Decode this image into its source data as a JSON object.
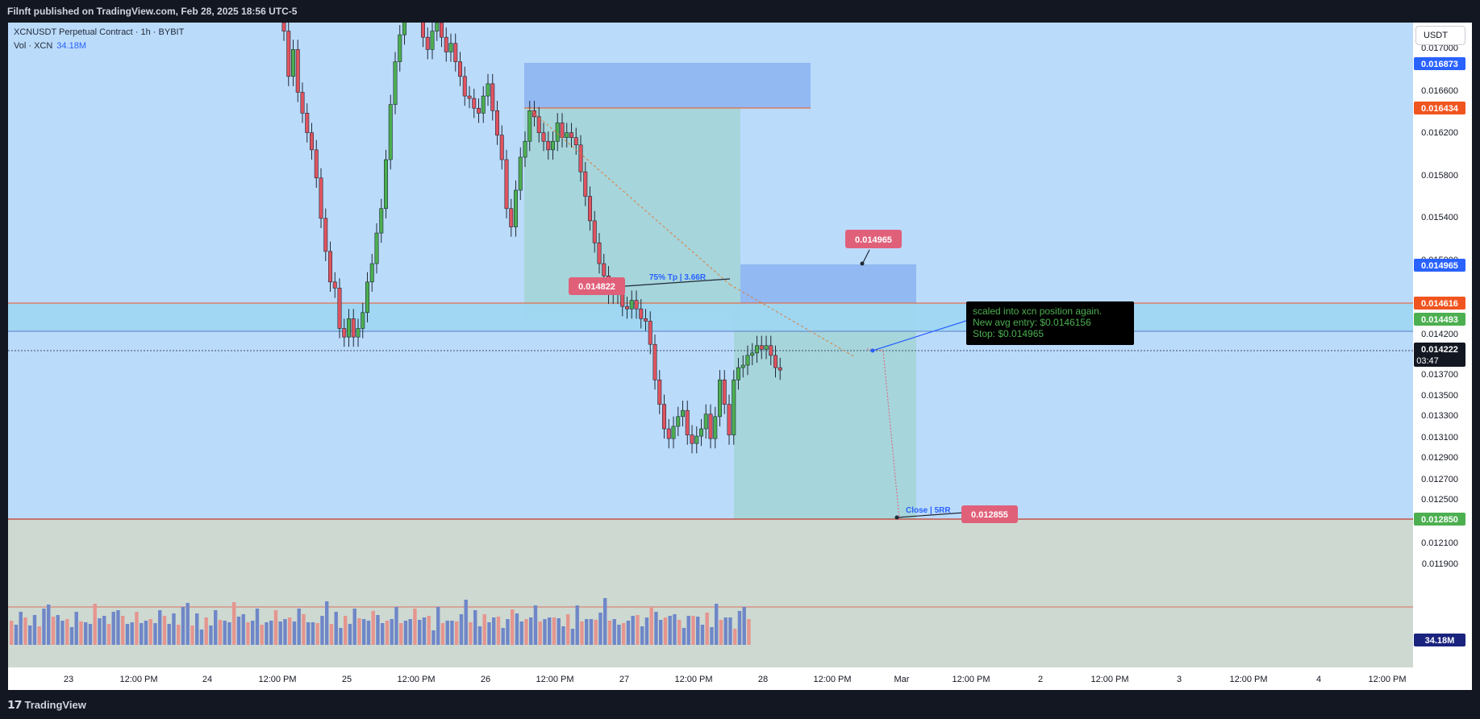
{
  "header": {
    "publisher_text": "Filnft published on TradingView.com, Feb 28, 2025 18:56 UTC-5"
  },
  "legend": {
    "symbol_line": "XCNUSDT Perpetual Contract · 1h · BYBIT",
    "vol_label": "Vol · XCN",
    "vol_value": "34.18M"
  },
  "toolbar": {
    "currency": "USDT"
  },
  "footer": {
    "brand": "TradingView"
  },
  "colors": {
    "up": "#4caf50",
    "down": "#e05460",
    "vol_up": "#6f87c8",
    "vol_down": "#e6958f",
    "bg": "#bbdbfb",
    "accent_blue": "#2962ff",
    "level_orange": "#f0551f",
    "label_red": "#e0607a"
  },
  "chart_data": {
    "type": "candlestick",
    "symbol": "XCNUSDT Perpetual Contract",
    "timeframe": "1h",
    "exchange": "BYBIT",
    "ylim": [
      0.01185,
      0.01712
    ],
    "y_ticks": [
      "0.017000",
      "0.016600",
      "0.016200",
      "0.015800",
      "0.015400",
      "0.015000",
      "0.014600",
      "0.014200",
      "0.013900",
      "0.013700",
      "0.013500",
      "0.013300",
      "0.013100",
      "0.012900",
      "0.012700",
      "0.012500",
      "0.012300",
      "0.012100",
      "0.011900"
    ],
    "x_ticks": [
      "23",
      "12:00 PM",
      "24",
      "12:00 PM",
      "25",
      "12:00 PM",
      "26",
      "12:00 PM",
      "27",
      "12:00 PM",
      "28",
      "12:00 PM",
      "Mar",
      "12:00 PM",
      "2",
      "12:00 PM",
      "3",
      "12:00 PM",
      "4",
      "12:00 PM"
    ],
    "candles_close": [
      0.01705,
      0.01668,
      0.0169,
      0.01655,
      0.01638,
      0.01622,
      0.01608,
      0.01585,
      0.01552,
      0.01525,
      0.015,
      0.01495,
      0.01462,
      0.01455,
      0.0147,
      0.01455,
      0.01462,
      0.01475,
      0.015,
      0.01515,
      0.0154,
      0.0156,
      0.016,
      0.01645,
      0.0168,
      0.01702,
      0.01725,
      0.01735,
      0.0173,
      0.0172,
      0.017,
      0.0169,
      0.01705,
      0.01712,
      0.017,
      0.01688,
      0.01695,
      0.0168,
      0.01668,
      0.01652,
      0.0165,
      0.01642,
      0.01638,
      0.01652,
      0.01662,
      0.0164,
      0.0162,
      0.016,
      0.0156,
      0.01545,
      0.01575,
      0.01602,
      0.01615,
      0.0164,
      0.01635,
      0.01622,
      0.01615,
      0.01608,
      0.01615,
      0.0163,
      0.01618,
      0.01622,
      0.01618,
      0.01612,
      0.0159,
      0.0157,
      0.0155,
      0.01532,
      0.01515,
      0.01505,
      0.0149,
      0.01495,
      0.0149,
      0.0148,
      0.01478,
      0.01485,
      0.01478,
      0.0147,
      0.01468,
      0.01449,
      0.0142,
      0.014,
      0.0138,
      0.01372,
      0.01382,
      0.0139,
      0.01395,
      0.01375,
      0.01368,
      0.01374,
      0.0138,
      0.01392,
      0.01372,
      0.0139,
      0.0142,
      0.014,
      0.01375,
      0.0142,
      0.0143,
      0.01432,
      0.0144,
      0.01442,
      0.01448,
      0.01445,
      0.01448,
      0.0144,
      0.0143,
      0.01428
    ],
    "candles_open": [
      0.01712,
      0.01705,
      0.01668,
      0.0169,
      0.01655,
      0.01638,
      0.01622,
      0.01608,
      0.01585,
      0.01552,
      0.01525,
      0.015,
      0.01495,
      0.01462,
      0.01455,
      0.0147,
      0.01455,
      0.01462,
      0.01475,
      0.015,
      0.01515,
      0.0154,
      0.0156,
      0.016,
      0.01645,
      0.0168,
      0.01702,
      0.01725,
      0.01735,
      0.0173,
      0.0172,
      0.017,
      0.0169,
      0.01705,
      0.01712,
      0.017,
      0.01688,
      0.01695,
      0.0168,
      0.01668,
      0.01652,
      0.0165,
      0.01642,
      0.01638,
      0.01652,
      0.01662,
      0.0164,
      0.0162,
      0.016,
      0.0156,
      0.01545,
      0.01575,
      0.01602,
      0.01615,
      0.0164,
      0.01635,
      0.01622,
      0.01615,
      0.01608,
      0.01615,
      0.0163,
      0.01618,
      0.01622,
      0.01618,
      0.01612,
      0.0159,
      0.0157,
      0.0155,
      0.01532,
      0.01515,
      0.01505,
      0.0149,
      0.01495,
      0.0149,
      0.0148,
      0.01478,
      0.01485,
      0.01478,
      0.0147,
      0.01468,
      0.01449,
      0.0142,
      0.014,
      0.0138,
      0.01372,
      0.01382,
      0.0139,
      0.01395,
      0.01375,
      0.01368,
      0.01374,
      0.0138,
      0.01392,
      0.01372,
      0.0139,
      0.0142,
      0.014,
      0.01375,
      0.0142,
      0.0143,
      0.01432,
      0.0144,
      0.01442,
      0.01448,
      0.01445,
      0.01448,
      0.0144,
      0.0143
    ],
    "volume_last": "34.18M",
    "price_labels": [
      {
        "value": "0.016873",
        "color": "#2962ff"
      },
      {
        "value": "0.016434",
        "color": "#f0551f"
      },
      {
        "value": "0.014965",
        "color": "#2962ff"
      },
      {
        "value": "0.014616",
        "color": "#f0551f"
      },
      {
        "value": "0.014493",
        "color": "#4caf50"
      },
      {
        "value": "0.014222",
        "color": "#131722",
        "sub": "03:47"
      },
      {
        "value": "0.012850",
        "color": "#4caf50"
      },
      {
        "value": "34.18M",
        "color": "#1a237e"
      }
    ],
    "annotations": {
      "label_entry": "0.014822",
      "label_stop": "0.014965",
      "label_target": "0.012855",
      "tp_text": "75% Tp | 3.66R",
      "close_text": "Close | 5RR",
      "note_lines": [
        "scaled into xcn position again.",
        "New avg entry: $0.0146156",
        "Stop: $0.014965"
      ]
    }
  }
}
